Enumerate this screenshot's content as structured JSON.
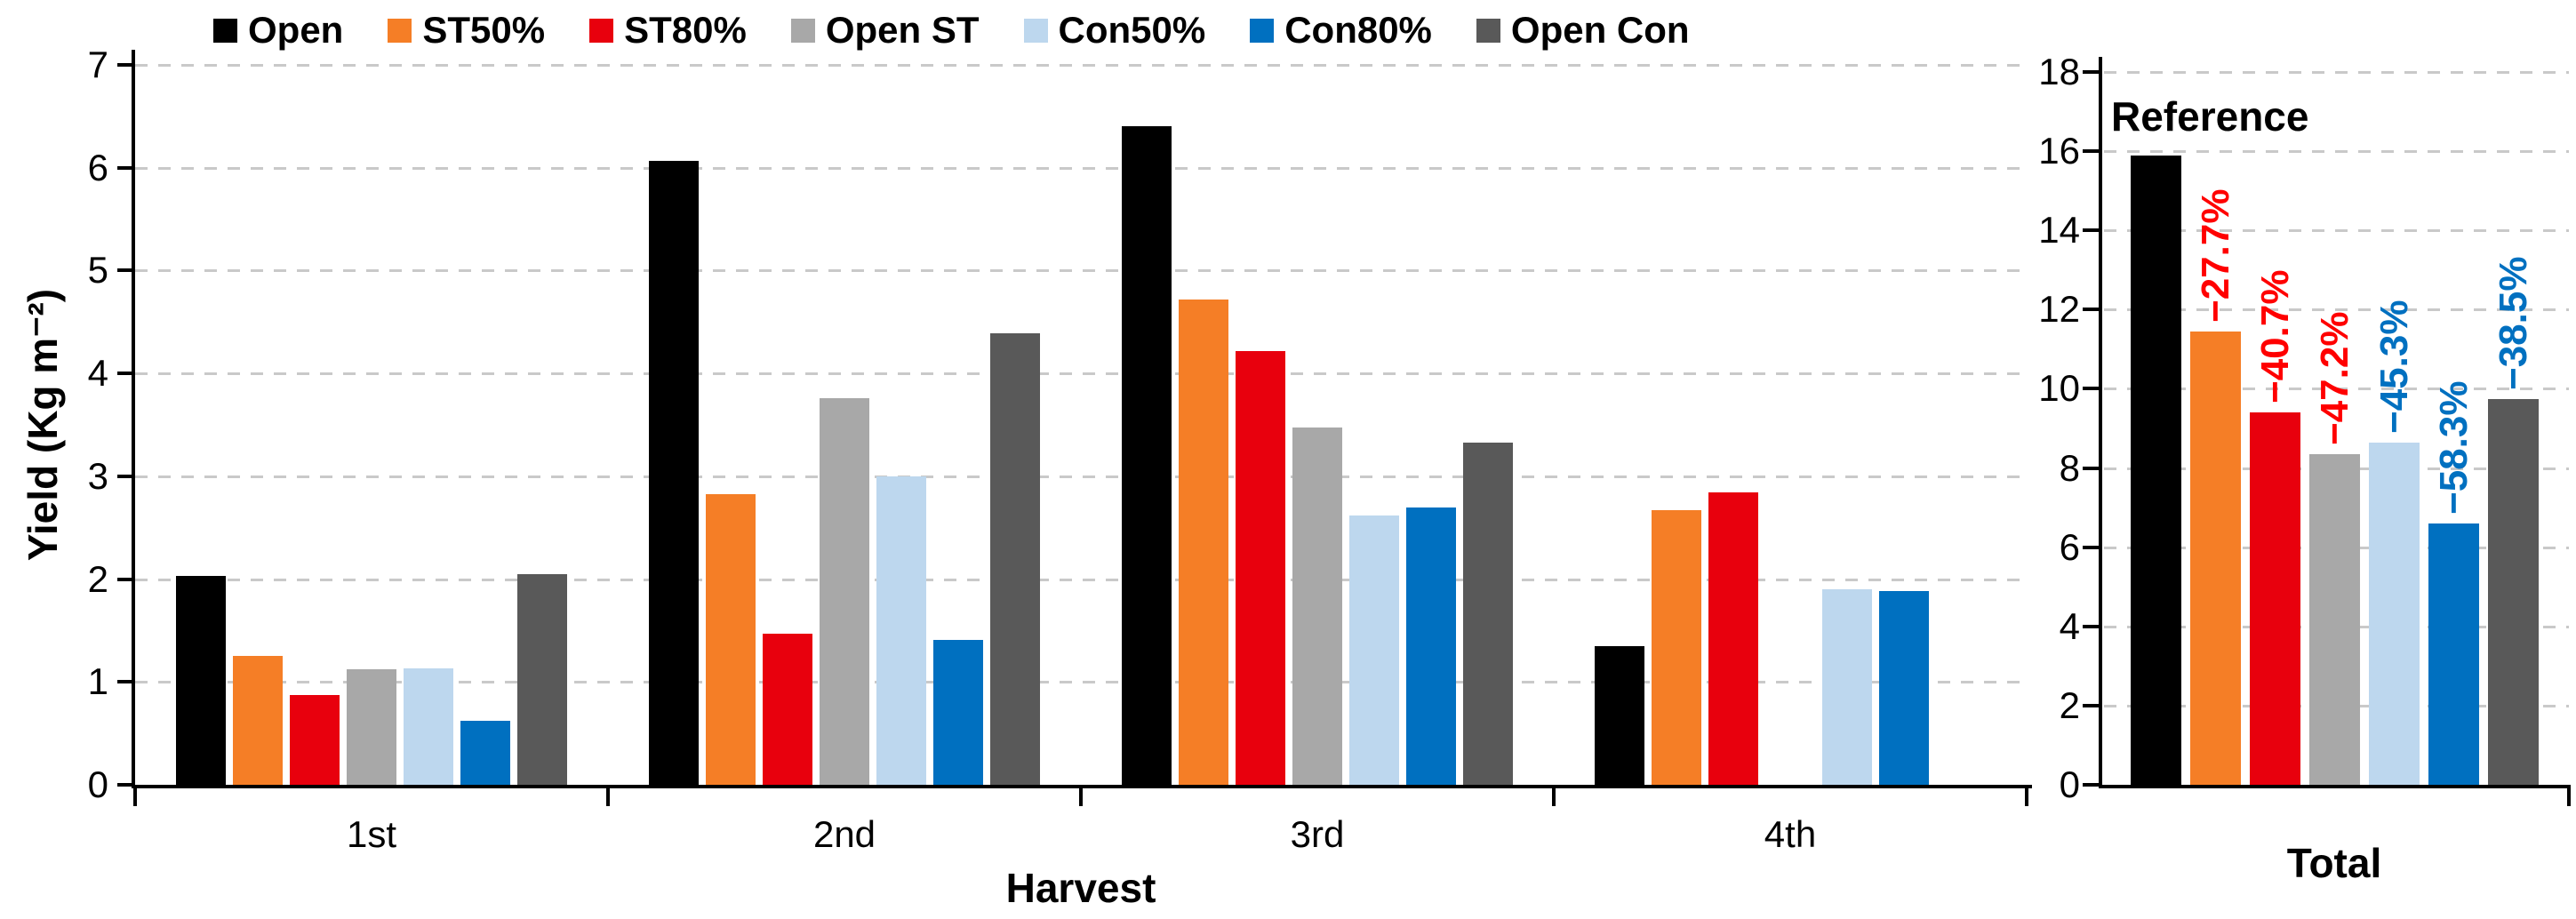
{
  "legend": {
    "items": [
      {
        "label": "Open",
        "color": "#000000"
      },
      {
        "label": "ST50%",
        "color": "#F57E26"
      },
      {
        "label": "ST80%",
        "color": "#E8000D"
      },
      {
        "label": "Open ST",
        "color": "#A8A8A8"
      },
      {
        "label": "Con50%",
        "color": "#BDD7EE"
      },
      {
        "label": "Con80%",
        "color": "#0070C0"
      },
      {
        "label": "Open Con",
        "color": "#595959"
      }
    ]
  },
  "chart_data": [
    {
      "type": "bar",
      "panel": "left",
      "title": "",
      "xlabel": "Harvest",
      "ylabel": "Yield (Kg m⁻²)",
      "ylim": [
        0,
        7
      ],
      "ytick_step": 1,
      "grid": true,
      "legend_position": "top",
      "categories": [
        "1st",
        "2nd",
        "3rd",
        "4th"
      ],
      "series": [
        {
          "name": "Open",
          "color": "#000000",
          "values": [
            2.03,
            6.07,
            6.4,
            1.35
          ]
        },
        {
          "name": "ST50%",
          "color": "#F57E26",
          "values": [
            1.25,
            2.83,
            4.72,
            2.67
          ]
        },
        {
          "name": "ST80%",
          "color": "#E8000D",
          "values": [
            0.87,
            1.47,
            4.22,
            2.84
          ]
        },
        {
          "name": "Open ST",
          "color": "#A8A8A8",
          "values": [
            1.12,
            3.76,
            3.47,
            0
          ]
        },
        {
          "name": "Con50%",
          "color": "#BDD7EE",
          "values": [
            1.13,
            3.0,
            2.62,
            1.9
          ]
        },
        {
          "name": "Con80%",
          "color": "#0070C0",
          "values": [
            0.62,
            1.41,
            2.7,
            1.88
          ]
        },
        {
          "name": "Open Con",
          "color": "#595959",
          "values": [
            2.05,
            4.39,
            3.33,
            0
          ]
        }
      ]
    },
    {
      "type": "bar",
      "panel": "right",
      "title": "",
      "xlabel": "Total",
      "ylabel": "",
      "ylim": [
        0,
        18
      ],
      "ytick_step": 2,
      "grid": true,
      "categories": [
        "Total"
      ],
      "bars": [
        {
          "name": "Open",
          "color": "#000000",
          "value": 15.9,
          "annotation": "Reference",
          "annotation_color": "#000000",
          "annotation_style": "horizontal"
        },
        {
          "name": "ST50%",
          "color": "#F57E26",
          "value": 11.45,
          "annotation": "−27.7%",
          "annotation_color": "#FF0000",
          "annotation_style": "rotated"
        },
        {
          "name": "ST80%",
          "color": "#E8000D",
          "value": 9.4,
          "annotation": "−40.7%",
          "annotation_color": "#FF0000",
          "annotation_style": "rotated"
        },
        {
          "name": "Open ST",
          "color": "#A8A8A8",
          "value": 8.35,
          "annotation": "−47.2%",
          "annotation_color": "#FF0000",
          "annotation_style": "rotated"
        },
        {
          "name": "Con50%",
          "color": "#BDD7EE",
          "value": 8.65,
          "annotation": "−45.3%",
          "annotation_color": "#0070C0",
          "annotation_style": "rotated"
        },
        {
          "name": "Con80%",
          "color": "#0070C0",
          "value": 6.6,
          "annotation": "−58.3%",
          "annotation_color": "#0070C0",
          "annotation_style": "rotated"
        },
        {
          "name": "Open Con",
          "color": "#595959",
          "value": 9.75,
          "annotation": "−38.5%",
          "annotation_color": "#0070C0",
          "annotation_style": "rotated"
        }
      ]
    }
  ]
}
